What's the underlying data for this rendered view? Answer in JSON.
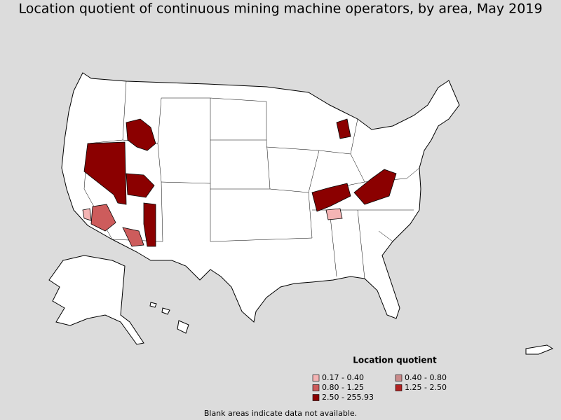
{
  "title": "Location quotient of continuous mining machine operators, by area, May 2019",
  "legend": {
    "title": "Location quotient",
    "items": [
      {
        "label": "0.17 - 0.40",
        "color": "#f4b4b4"
      },
      {
        "label": "0.40 - 0.80",
        "color": "#c98a8a"
      },
      {
        "label": "0.80 - 1.25",
        "color": "#cd5c5c"
      },
      {
        "label": "1.25 - 2.50",
        "color": "#b22222"
      },
      {
        "label": "2.50 - 255.93",
        "color": "#8b0000"
      }
    ]
  },
  "footnote": "Blank areas indicate data not available."
}
